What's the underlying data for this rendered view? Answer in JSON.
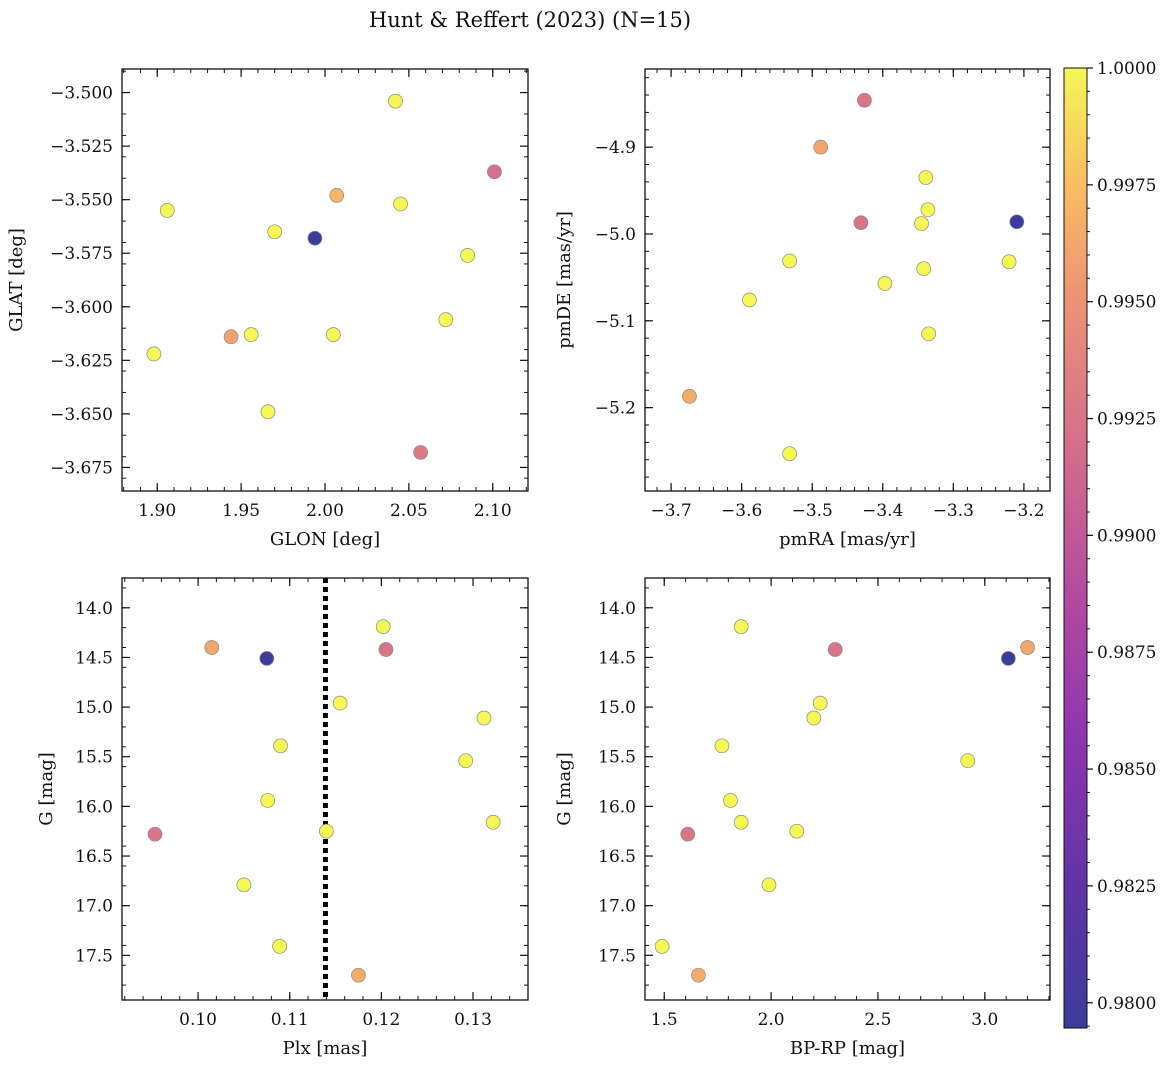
{
  "title": "Hunt & Reffert (2023) (N=15)",
  "colorbar": {
    "cmap": "plasma",
    "vmin": 0.97946,
    "vmax": 1.0,
    "ticks": [
      "0.9800",
      "0.9825",
      "0.9850",
      "0.9875",
      "0.9900",
      "0.9925",
      "0.9950",
      "0.9975",
      "1.0000"
    ]
  },
  "chart_data": [
    {
      "type": "scatter",
      "id": "glon-glat",
      "xlabel": "GLON [deg]",
      "ylabel": "GLAT [deg]",
      "xlim": [
        1.879,
        2.121
      ],
      "ylim": [
        -3.686,
        -3.489
      ],
      "y_inverted": false,
      "xticks": [
        "1.90",
        "1.95",
        "2.00",
        "2.05",
        "2.10"
      ],
      "yticks": [
        "−3.500",
        "−3.525",
        "−3.550",
        "−3.575",
        "−3.600",
        "−3.625",
        "−3.650",
        "−3.675"
      ],
      "points": [
        {
          "x": 1.906,
          "y": -3.555,
          "c": 1.0
        },
        {
          "x": 2.042,
          "y": -3.504,
          "c": 0.9999
        },
        {
          "x": 2.101,
          "y": -3.537,
          "c": 0.9922
        },
        {
          "x": 2.007,
          "y": -3.548,
          "c": 0.997
        },
        {
          "x": 2.045,
          "y": -3.552,
          "c": 1.0
        },
        {
          "x": 1.97,
          "y": -3.565,
          "c": 1.0
        },
        {
          "x": 1.994,
          "y": -3.568,
          "c": 0.9795
        },
        {
          "x": 2.085,
          "y": -3.576,
          "c": 1.0
        },
        {
          "x": 2.072,
          "y": -3.606,
          "c": 1.0
        },
        {
          "x": 2.005,
          "y": -3.613,
          "c": 1.0
        },
        {
          "x": 1.956,
          "y": -3.613,
          "c": 1.0
        },
        {
          "x": 1.944,
          "y": -3.614,
          "c": 0.996
        },
        {
          "x": 1.898,
          "y": -3.622,
          "c": 1.0
        },
        {
          "x": 1.966,
          "y": -3.649,
          "c": 1.0
        },
        {
          "x": 2.057,
          "y": -3.668,
          "c": 0.993
        }
      ]
    },
    {
      "type": "scatter",
      "id": "pmra-pmde",
      "xlabel": "pmRA [mas/yr]",
      "ylabel": "pmDE [mas/yr]",
      "xlim": [
        -3.737,
        -3.163
      ],
      "ylim": [
        -5.296,
        -4.81
      ],
      "y_inverted": false,
      "xticks": [
        "−3.7",
        "−3.6",
        "−3.5",
        "−3.4",
        "−3.3",
        "−3.2"
      ],
      "yticks": [
        "−4.9",
        "−5.0",
        "−5.1",
        "−5.2"
      ],
      "points": [
        {
          "x": -3.426,
          "y": -4.846,
          "c": 0.9925
        },
        {
          "x": -3.488,
          "y": -4.9,
          "c": 0.9962
        },
        {
          "x": -3.339,
          "y": -4.935,
          "c": 1.0
        },
        {
          "x": -3.336,
          "y": -4.972,
          "c": 1.0
        },
        {
          "x": -3.345,
          "y": -4.988,
          "c": 1.0
        },
        {
          "x": -3.431,
          "y": -4.987,
          "c": 0.9924
        },
        {
          "x": -3.21,
          "y": -4.986,
          "c": 0.9795
        },
        {
          "x": -3.532,
          "y": -5.031,
          "c": 1.0
        },
        {
          "x": -3.221,
          "y": -5.032,
          "c": 1.0
        },
        {
          "x": -3.342,
          "y": -5.04,
          "c": 1.0
        },
        {
          "x": -3.397,
          "y": -5.057,
          "c": 1.0
        },
        {
          "x": -3.589,
          "y": -5.076,
          "c": 1.0
        },
        {
          "x": -3.335,
          "y": -5.115,
          "c": 1.0
        },
        {
          "x": -3.674,
          "y": -5.187,
          "c": 0.9965
        },
        {
          "x": -3.532,
          "y": -5.253,
          "c": 1.0
        }
      ]
    },
    {
      "type": "scatter",
      "id": "plx-g",
      "xlabel": "Plx [mas]",
      "ylabel": "G [mag]",
      "xlim": [
        0.0917,
        0.136
      ],
      "ylim": [
        17.95,
        13.7
      ],
      "y_inverted": true,
      "xticks": [
        "0.10",
        "0.11",
        "0.12",
        "0.13"
      ],
      "yticks": [
        "14.0",
        "14.5",
        "15.0",
        "15.5",
        "16.0",
        "16.5",
        "17.0",
        "17.5"
      ],
      "vline": 0.1139,
      "points": [
        {
          "x": 0.1202,
          "y": 14.19,
          "c": 1.0
        },
        {
          "x": 0.1015,
          "y": 14.4,
          "c": 0.9962
        },
        {
          "x": 0.1075,
          "y": 14.51,
          "c": 0.9795
        },
        {
          "x": 0.1205,
          "y": 14.42,
          "c": 0.9925
        },
        {
          "x": 0.1155,
          "y": 14.96,
          "c": 1.0
        },
        {
          "x": 0.1312,
          "y": 15.11,
          "c": 1.0
        },
        {
          "x": 0.109,
          "y": 15.39,
          "c": 1.0
        },
        {
          "x": 0.1292,
          "y": 15.54,
          "c": 1.0
        },
        {
          "x": 0.1076,
          "y": 15.94,
          "c": 1.0
        },
        {
          "x": 0.1322,
          "y": 16.16,
          "c": 1.0
        },
        {
          "x": 0.114,
          "y": 16.25,
          "c": 1.0
        },
        {
          "x": 0.0953,
          "y": 16.28,
          "c": 0.9925
        },
        {
          "x": 0.105,
          "y": 16.79,
          "c": 1.0
        },
        {
          "x": 0.1089,
          "y": 17.41,
          "c": 1.0
        },
        {
          "x": 0.1175,
          "y": 17.7,
          "c": 0.9965
        }
      ]
    },
    {
      "type": "scatter",
      "id": "bprp-g",
      "xlabel": "BP-RP [mag]",
      "ylabel": "G [mag]",
      "xlim": [
        1.41,
        3.305
      ],
      "ylim": [
        17.95,
        13.7
      ],
      "y_inverted": true,
      "xticks": [
        "1.5",
        "2.0",
        "2.5",
        "3.0"
      ],
      "yticks": [
        "14.0",
        "14.5",
        "15.0",
        "15.5",
        "16.0",
        "16.5",
        "17.0",
        "17.5"
      ],
      "points": [
        {
          "x": 1.86,
          "y": 14.19,
          "c": 1.0
        },
        {
          "x": 3.2,
          "y": 14.4,
          "c": 0.9962
        },
        {
          "x": 2.3,
          "y": 14.42,
          "c": 0.9925
        },
        {
          "x": 3.11,
          "y": 14.51,
          "c": 0.9795
        },
        {
          "x": 2.23,
          "y": 14.96,
          "c": 1.0
        },
        {
          "x": 2.2,
          "y": 15.11,
          "c": 1.0
        },
        {
          "x": 1.77,
          "y": 15.39,
          "c": 1.0
        },
        {
          "x": 2.92,
          "y": 15.54,
          "c": 1.0
        },
        {
          "x": 1.81,
          "y": 15.94,
          "c": 1.0
        },
        {
          "x": 1.86,
          "y": 16.16,
          "c": 1.0
        },
        {
          "x": 2.12,
          "y": 16.25,
          "c": 1.0
        },
        {
          "x": 1.61,
          "y": 16.28,
          "c": 0.9925
        },
        {
          "x": 1.99,
          "y": 16.79,
          "c": 1.0
        },
        {
          "x": 1.49,
          "y": 17.41,
          "c": 1.0
        },
        {
          "x": 1.66,
          "y": 17.7,
          "c": 0.9965
        }
      ]
    }
  ]
}
